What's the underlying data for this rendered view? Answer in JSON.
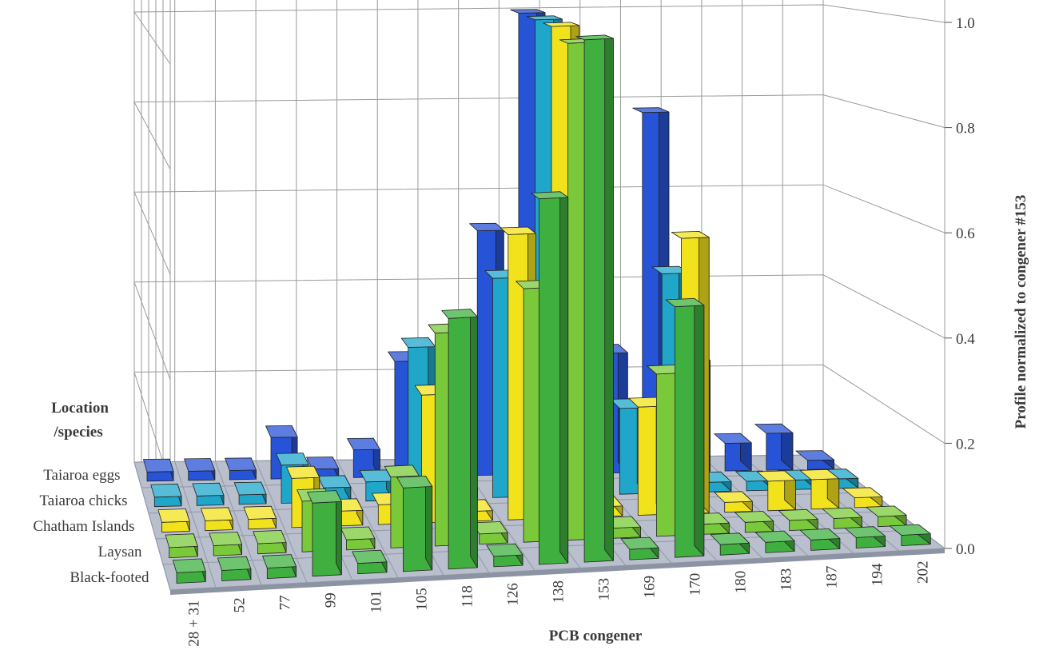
{
  "chart_data": {
    "type": "bar",
    "subtype": "3d-grouped-bar",
    "title": "",
    "xlabel": "PCB congener",
    "ylabel": "Profile normalized to congener #153",
    "depth_label": "Location\n/species",
    "depth_label_lines": [
      "Location",
      "/species"
    ],
    "ylim": [
      0.0,
      1.2
    ],
    "yticks": [
      "0.0",
      "0.2",
      "0.4",
      "0.6",
      "0.8",
      "1.0",
      "1.2"
    ],
    "grid": true,
    "categories": [
      "28 + 31",
      "52",
      "77",
      "99",
      "101",
      "105",
      "118",
      "126",
      "138",
      "153",
      "169",
      "170",
      "180",
      "183",
      "187",
      "194",
      "202"
    ],
    "series": [
      {
        "name": "Black-footed",
        "color": "#3fb03f",
        "values": [
          0.02,
          0.02,
          0.02,
          0.14,
          0.02,
          0.16,
          0.48,
          0.02,
          0.7,
          1.0,
          0.02,
          0.48,
          0.02,
          0.02,
          0.02,
          0.02,
          0.02
        ]
      },
      {
        "name": "Laysan",
        "color": "#79c93a",
        "values": [
          0.02,
          0.02,
          0.02,
          0.1,
          0.02,
          0.14,
          0.42,
          0.02,
          0.5,
          0.98,
          0.02,
          0.32,
          0.02,
          0.02,
          0.02,
          0.02,
          0.02
        ]
      },
      {
        "name": "Chatham Islands",
        "color": "#f2e21c",
        "values": [
          0.02,
          0.02,
          0.02,
          0.1,
          0.03,
          0.04,
          0.26,
          0.02,
          0.58,
          1.0,
          0.02,
          0.22,
          0.56,
          0.02,
          0.06,
          0.06,
          0.02
        ]
      },
      {
        "name": "Taiaroa chicks",
        "color": "#1fa6c9",
        "values": [
          0.02,
          0.02,
          0.02,
          0.08,
          0.03,
          0.04,
          0.32,
          0.02,
          0.46,
          1.0,
          0.02,
          0.18,
          0.46,
          0.02,
          0.02,
          0.02,
          0.02
        ]
      },
      {
        "name": "Taiaroa eggs",
        "color": "#2753d6",
        "values": [
          0.02,
          0.02,
          0.02,
          0.09,
          0.02,
          0.06,
          0.25,
          0.02,
          0.53,
          1.0,
          0.02,
          0.26,
          0.78,
          0.24,
          0.06,
          0.08,
          0.02
        ]
      }
    ]
  }
}
